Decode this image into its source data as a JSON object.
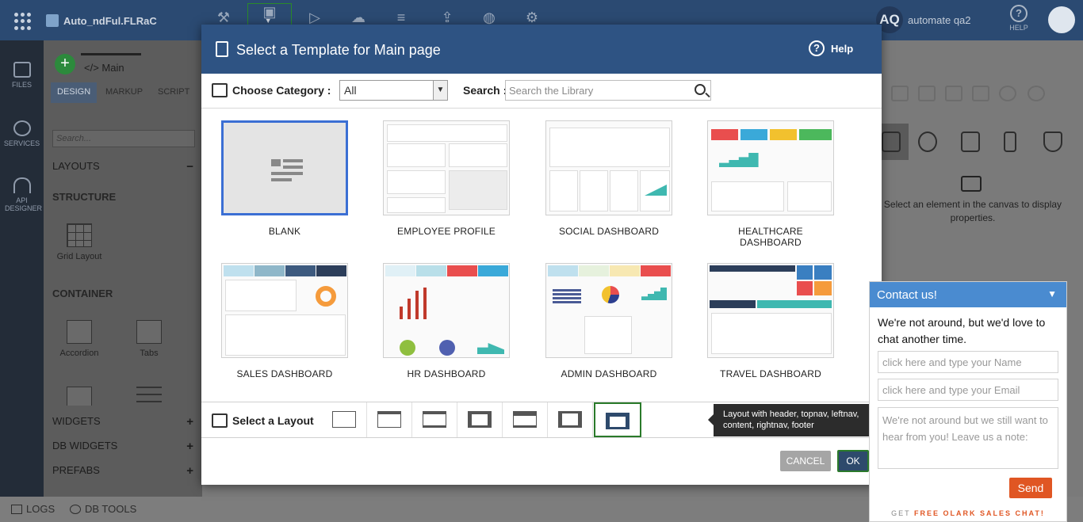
{
  "topbar": {
    "project_name": "Auto_ndFul.FLRaC",
    "user_initials": "AQ",
    "user_name": "automate qa2",
    "help_label": "HELP"
  },
  "leftrail": {
    "items": [
      {
        "label": "FILES",
        "icon": "files-icon"
      },
      {
        "label": "SERVICES",
        "icon": "services-icon"
      },
      {
        "label": "API DESIGNER",
        "icon": "api-designer-icon"
      }
    ]
  },
  "editor": {
    "page_tab": "</> Main",
    "subtabs": [
      "DESIGN",
      "MARKUP",
      "SCRIPT"
    ],
    "search_placeholder": "Search..."
  },
  "panel": {
    "layouts": "LAYOUTS",
    "structure": "STRUCTURE",
    "grid_layout": "Grid Layout",
    "container": "CONTAINER",
    "accordion": "Accordion",
    "tabs": "Tabs",
    "widgets": "WIDGETS",
    "db_widgets": "DB WIDGETS",
    "prefabs": "PREFABS",
    "collapse_symbol": "−",
    "expand_symbol": "+"
  },
  "properties": {
    "message": "Select an element in the canvas to display properties."
  },
  "bottombar": {
    "logs": "LOGS",
    "db_tools": "DB TOOLS"
  },
  "modal": {
    "title": "Select a Template for Main page",
    "help": "Help",
    "category_label": "Choose Category :",
    "category_value": "All",
    "search_label": "Search :",
    "search_placeholder": "Search the Library",
    "templates": [
      {
        "name": "BLANK"
      },
      {
        "name": "EMPLOYEE PROFILE"
      },
      {
        "name": "SOCIAL DASHBOARD"
      },
      {
        "name": "HEALTHCARE DASHBOARD"
      },
      {
        "name": "SALES DASHBOARD"
      },
      {
        "name": "HR DASHBOARD"
      },
      {
        "name": "ADMIN DASHBOARD"
      },
      {
        "name": "TRAVEL DASHBOARD"
      }
    ],
    "layout_label": "Select a Layout",
    "layout_tooltip": "Layout with header, topnav, leftnav, content, rightnav, footer",
    "cancel": "CANCEL",
    "ok": "OK"
  },
  "chat": {
    "title": "Contact us!",
    "message": "We're not around, but we'd love to chat another time.",
    "name_placeholder": "click here and type your Name",
    "email_placeholder": "click here and type your Email",
    "note_placeholder": "We're not around but we still want to hear from you!  Leave us a note:",
    "send": "Send",
    "footer_prefix": "GET",
    "footer_link": "FREE OLARK SALES CHAT!"
  },
  "colors": {
    "topbar": "#2b4a72",
    "modal_header": "#2e5383",
    "chat_header": "#4a8bd0",
    "send": "#e05623",
    "ok_border": "#2b7a2b"
  }
}
